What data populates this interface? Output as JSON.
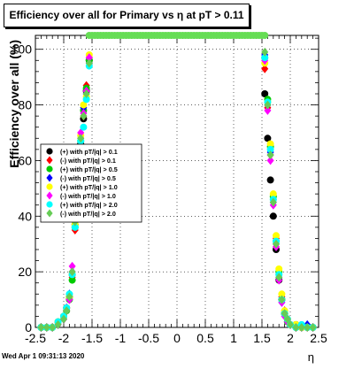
{
  "chart_data": {
    "type": "scatter",
    "title": "Efficiency over all for Primary vs   η at pT > 0.11",
    "xlabel": "η",
    "ylabel": "Efficiency over all (%)",
    "xlim": [
      -2.5,
      2.5
    ],
    "ylim": [
      0,
      105
    ],
    "x_ticks": [
      "-2.5",
      "-2",
      "-1.5",
      "-1",
      "-0.5",
      "0",
      "0.5",
      "1",
      "1.5",
      "2",
      "2.5"
    ],
    "y_ticks": [
      "0",
      "20",
      "40",
      "60",
      "80",
      "100"
    ],
    "grid": true,
    "legend_position": "left-middle",
    "plateau": {
      "x_range": [
        -1.55,
        1.55
      ],
      "value": 105,
      "color": "#66dd55"
    },
    "series": [
      {
        "name": "(+) with pT/|q| > 0.1",
        "color": "#000000",
        "x": [
          -2.4,
          -2.3,
          -2.2,
          -2.1,
          -2.0,
          -1.95,
          -1.9,
          -1.85,
          -1.8,
          -1.75,
          -1.7,
          -1.65,
          -1.6,
          -1.55,
          1.55,
          1.6,
          1.65,
          1.7,
          1.75,
          1.8,
          1.85,
          1.9,
          1.95,
          2.0,
          2.1,
          2.2,
          2.3,
          2.4
        ],
        "y": [
          0,
          0,
          0,
          2,
          4,
          7,
          11,
          19,
          37,
          55,
          66,
          75,
          85,
          96,
          84,
          68,
          53,
          40,
          28,
          17,
          10,
          5,
          3,
          1,
          1,
          0,
          0,
          0
        ]
      },
      {
        "name": "(-) with pT/|q| > 0.1",
        "color": "#ff0000",
        "x": [
          -2.4,
          -2.3,
          -2.2,
          -2.1,
          -2.0,
          -1.95,
          -1.9,
          -1.85,
          -1.8,
          -1.75,
          -1.7,
          -1.65,
          -1.6,
          -1.55,
          1.55,
          1.6,
          1.65,
          1.7,
          1.75,
          1.8,
          1.85,
          1.9,
          1.95,
          2.0,
          2.1,
          2.2,
          2.3,
          2.4
        ],
        "y": [
          0,
          0,
          0,
          1,
          3,
          6,
          10,
          18,
          35,
          53,
          68,
          76,
          87,
          97,
          93,
          79,
          62,
          46,
          32,
          19,
          11,
          6,
          3,
          1,
          0,
          0,
          0,
          0
        ]
      },
      {
        "name": "(+) with pT/|q| > 0.5",
        "color": "#00cc00",
        "x": [
          -2.4,
          -2.3,
          -2.2,
          -2.1,
          -2.0,
          -1.95,
          -1.9,
          -1.85,
          -1.8,
          -1.75,
          -1.7,
          -1.65,
          -1.6,
          -1.55,
          1.55,
          1.6,
          1.65,
          1.7,
          1.75,
          1.8,
          1.85,
          1.9,
          1.95,
          2.0,
          2.1,
          2.2,
          2.3,
          2.4
        ],
        "y": [
          0,
          0,
          0,
          2,
          4,
          6,
          10,
          17,
          36,
          54,
          67,
          78,
          86,
          96,
          97,
          82,
          65,
          47,
          31,
          20,
          10,
          5,
          2,
          1,
          0,
          0,
          0,
          0
        ]
      },
      {
        "name": "(-) with pT/|q| > 0.5",
        "color": "#0000ff",
        "x": [
          -2.4,
          -2.3,
          -2.2,
          -2.1,
          -2.0,
          -1.95,
          -1.9,
          -1.85,
          -1.8,
          -1.75,
          -1.7,
          -1.65,
          -1.6,
          -1.55,
          1.55,
          1.6,
          1.65,
          1.7,
          1.75,
          1.8,
          1.85,
          1.9,
          1.95,
          2.0,
          2.1,
          2.2,
          2.3,
          2.4
        ],
        "y": [
          0,
          0,
          0,
          1,
          3,
          7,
          12,
          20,
          38,
          56,
          65,
          79,
          84,
          95,
          98,
          80,
          63,
          45,
          30,
          18,
          9,
          5,
          3,
          1,
          0,
          0,
          1,
          0
        ]
      },
      {
        "name": "(+) with pT/|q| > 1.0",
        "color": "#ffff00",
        "x": [
          -2.4,
          -2.3,
          -2.2,
          -2.1,
          -2.0,
          -1.95,
          -1.9,
          -1.85,
          -1.8,
          -1.75,
          -1.7,
          -1.65,
          -1.6,
          -1.55,
          1.55,
          1.6,
          1.65,
          1.7,
          1.75,
          1.8,
          1.85,
          1.9,
          1.95,
          2.0,
          2.1,
          2.2,
          2.3,
          2.4
        ],
        "y": [
          0,
          0,
          0,
          2,
          4,
          7,
          11,
          19,
          37,
          55,
          69,
          80,
          83,
          98,
          95,
          81,
          66,
          48,
          33,
          21,
          12,
          6,
          3,
          1,
          1,
          0,
          0,
          0
        ]
      },
      {
        "name": "(-) with pT/|q| > 1.0",
        "color": "#ff00ff",
        "x": [
          -2.4,
          -2.3,
          -2.2,
          -2.1,
          -2.0,
          -1.95,
          -1.9,
          -1.85,
          -1.8,
          -1.75,
          -1.7,
          -1.65,
          -1.6,
          -1.55,
          1.55,
          1.6,
          1.65,
          1.7,
          1.75,
          1.8,
          1.85,
          1.9,
          1.95,
          2.0,
          2.1,
          2.2,
          2.3,
          2.4
        ],
        "y": [
          0,
          0,
          0,
          1,
          3,
          6,
          10,
          22,
          39,
          57,
          70,
          77,
          85,
          97,
          96,
          78,
          60,
          44,
          29,
          17,
          9,
          4,
          2,
          1,
          0,
          0,
          0,
          0
        ]
      },
      {
        "name": "(+) with pT/|q| > 2.0",
        "color": "#00ffff",
        "x": [
          -2.4,
          -2.3,
          -2.2,
          -2.1,
          -2.0,
          -1.95,
          -1.9,
          -1.85,
          -1.8,
          -1.75,
          -1.7,
          -1.65,
          -1.6,
          -1.55,
          1.55,
          1.6,
          1.65,
          1.7,
          1.75,
          1.8,
          1.85,
          1.9,
          1.95,
          2.0,
          2.1,
          2.2,
          2.3,
          2.4
        ],
        "y": [
          0,
          0,
          0,
          2,
          4,
          7,
          12,
          19,
          36,
          56,
          67,
          72,
          82,
          94,
          97,
          81,
          64,
          46,
          31,
          19,
          10,
          5,
          3,
          1,
          0,
          1,
          0,
          0
        ]
      },
      {
        "name": "(-) with pT/|q| > 2.0",
        "color": "#66cc55",
        "x": [
          -2.4,
          -2.3,
          -2.2,
          -2.1,
          -2.0,
          -1.95,
          -1.9,
          -1.85,
          -1.8,
          -1.75,
          -1.7,
          -1.65,
          -1.6,
          -1.55,
          1.55,
          1.6,
          1.65,
          1.7,
          1.75,
          1.8,
          1.85,
          1.9,
          1.95,
          2.0,
          2.1,
          2.2,
          2.3,
          2.4
        ],
        "y": [
          0,
          0,
          0,
          1,
          3,
          6,
          11,
          20,
          38,
          54,
          68,
          76,
          84,
          95,
          99,
          80,
          62,
          45,
          30,
          18,
          10,
          5,
          3,
          1,
          0,
          0,
          0,
          0
        ]
      }
    ]
  },
  "footer": {
    "timestamp": "Wed Apr  1 09:31:13 2020"
  }
}
